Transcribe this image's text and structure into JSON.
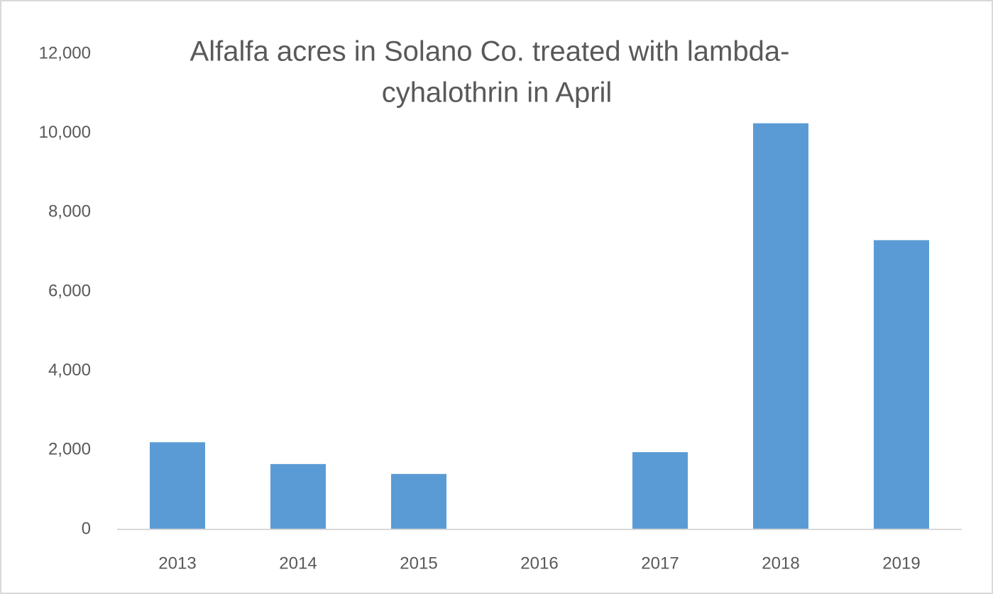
{
  "chart_data": {
    "type": "bar",
    "title": [
      "Alfalfa acres in Solano Co. treated with lambda-",
      "cyhalothrin in April"
    ],
    "categories": [
      "2013",
      "2014",
      "2015",
      "2016",
      "2017",
      "2018",
      "2019"
    ],
    "values": [
      2200,
      1650,
      1400,
      0,
      1950,
      10250,
      7300
    ],
    "color": "#5b9bd5",
    "ylim": [
      0,
      12000
    ],
    "yticks": [
      0,
      {
        "value": 2000,
        "label": "2,000"
      },
      {
        "value": 4000,
        "label": "4,000"
      },
      {
        "value": 6000,
        "label": "6,000"
      },
      {
        "value": 8000,
        "label": "8,000"
      },
      {
        "value": 10000,
        "label": "10,000"
      },
      {
        "value": 12000,
        "label": "12,000"
      }
    ],
    "grid": false
  }
}
